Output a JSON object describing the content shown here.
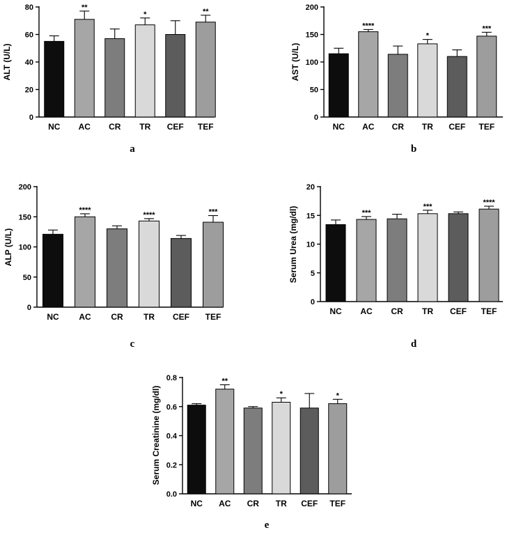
{
  "chart_data": [
    {
      "type": "bar",
      "panel_label": "a",
      "ylabel": "ALT (U/L)",
      "categories": [
        "NC",
        "AC",
        "CR",
        "TR",
        "CEF",
        "TEF"
      ],
      "values": [
        55,
        71,
        57,
        67,
        60,
        69
      ],
      "errors": [
        4,
        6,
        7,
        5,
        10,
        5
      ],
      "significance": [
        "",
        "**",
        "",
        "*",
        "",
        "**"
      ],
      "colors": [
        "#0d0d0d",
        "#a6a6a6",
        "#7d7d7d",
        "#d9d9d9",
        "#5c5c5c",
        "#9d9d9d"
      ],
      "ylim": [
        0,
        80
      ],
      "yticks": [
        0,
        20,
        40,
        60,
        80
      ],
      "ytick_labels": [
        "0",
        "20",
        "40",
        "60",
        "80"
      ],
      "grid": false
    },
    {
      "type": "bar",
      "panel_label": "b",
      "ylabel": "AST (U/L)",
      "categories": [
        "NC",
        "AC",
        "CR",
        "TR",
        "CEF",
        "TEF"
      ],
      "values": [
        115,
        155,
        114,
        133,
        110,
        147
      ],
      "errors": [
        10,
        4,
        15,
        8,
        12,
        7
      ],
      "significance": [
        "",
        "****",
        "",
        "*",
        "",
        "***"
      ],
      "colors": [
        "#0d0d0d",
        "#a6a6a6",
        "#7d7d7d",
        "#d9d9d9",
        "#5c5c5c",
        "#9d9d9d"
      ],
      "ylim": [
        0,
        200
      ],
      "yticks": [
        0,
        50,
        100,
        150,
        200
      ],
      "ytick_labels": [
        "0",
        "50",
        "100",
        "150",
        "200"
      ],
      "grid": false
    },
    {
      "type": "bar",
      "panel_label": "c",
      "ylabel": "ALP (U/L)",
      "categories": [
        "NC",
        "AC",
        "CR",
        "TR",
        "CEF",
        "TEF"
      ],
      "values": [
        121,
        150,
        130,
        143,
        114,
        141
      ],
      "errors": [
        7,
        5,
        5,
        4,
        5,
        11
      ],
      "significance": [
        "",
        "****",
        "",
        "****",
        "",
        "***"
      ],
      "colors": [
        "#0d0d0d",
        "#a6a6a6",
        "#7d7d7d",
        "#d9d9d9",
        "#5c5c5c",
        "#9d9d9d"
      ],
      "ylim": [
        0,
        200
      ],
      "yticks": [
        0,
        50,
        100,
        150,
        200
      ],
      "ytick_labels": [
        "0",
        "50",
        "100",
        "150",
        "200"
      ],
      "grid": false
    },
    {
      "type": "bar",
      "panel_label": "d",
      "ylabel": "Serum Urea (mg/dl)",
      "categories": [
        "NC",
        "AC",
        "CR",
        "TR",
        "CEF",
        "TEF"
      ],
      "values": [
        13.4,
        14.3,
        14.4,
        15.3,
        15.3,
        16.1
      ],
      "errors": [
        0.8,
        0.5,
        0.8,
        0.6,
        0.3,
        0.5
      ],
      "significance": [
        "",
        "***",
        "",
        "***",
        "",
        "****"
      ],
      "colors": [
        "#0d0d0d",
        "#a6a6a6",
        "#7d7d7d",
        "#d9d9d9",
        "#5c5c5c",
        "#9d9d9d"
      ],
      "ylim": [
        0,
        20
      ],
      "yticks": [
        0,
        5,
        10,
        15,
        20
      ],
      "ytick_labels": [
        "0",
        "5",
        "10",
        "15",
        "20"
      ],
      "grid": false
    },
    {
      "type": "bar",
      "panel_label": "e",
      "ylabel": "Serum Creatinine (mg/dl)",
      "categories": [
        "NC",
        "AC",
        "CR",
        "TR",
        "CEF",
        "TEF"
      ],
      "values": [
        0.61,
        0.72,
        0.59,
        0.63,
        0.59,
        0.62
      ],
      "errors": [
        0.01,
        0.03,
        0.01,
        0.03,
        0.1,
        0.03
      ],
      "significance": [
        "",
        "**",
        "",
        "*",
        "",
        "*"
      ],
      "colors": [
        "#0d0d0d",
        "#a6a6a6",
        "#7d7d7d",
        "#d9d9d9",
        "#5c5c5c",
        "#9d9d9d"
      ],
      "ylim": [
        0,
        0.8
      ],
      "yticks": [
        0,
        0.2,
        0.4,
        0.6,
        0.8
      ],
      "ytick_labels": [
        "0.0",
        "0.2",
        "0.4",
        "0.6",
        "0.8"
      ],
      "grid": false
    }
  ]
}
